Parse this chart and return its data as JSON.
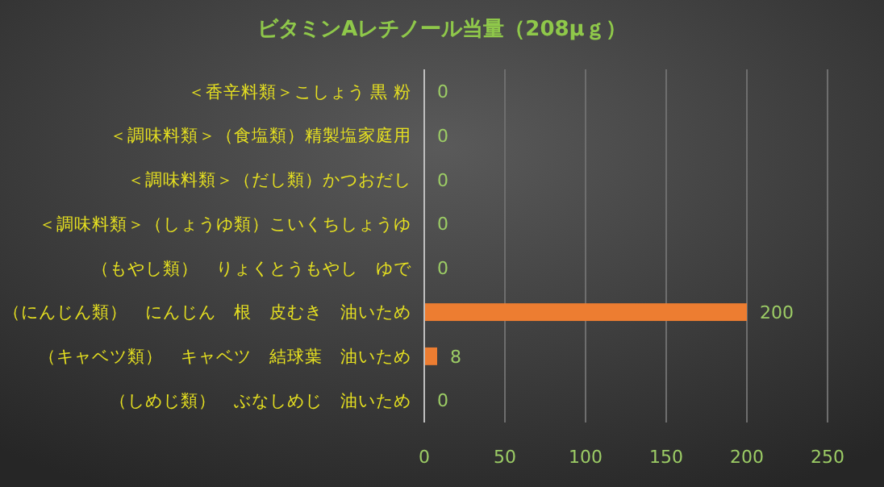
{
  "chart_data": {
    "type": "bar",
    "orientation": "horizontal",
    "title": "ビタミンAレチノール当量（208μｇ）",
    "categories": [
      "＜香辛料類＞こしょう 黒 粉",
      "＜調味料類＞（食塩類）精製塩家庭用",
      "＜調味料類＞（だし類）かつおだし",
      "＜調味料類＞（しょうゆ類）こいくちしょうゆ",
      "（もやし類）　りょくとうもやし　ゆで",
      "（にんじん類）　にんじん　根　皮むき　油いため",
      "（キャベツ類）　キャベツ　結球葉　油いため",
      "（しめじ類）　ぶなしめじ　油いため"
    ],
    "values": [
      0,
      0,
      0,
      0,
      0,
      200,
      8,
      0
    ],
    "color": "#ed7d31",
    "xlim": [
      0,
      250
    ],
    "xticks": [
      0,
      50,
      100,
      150,
      200,
      250
    ],
    "grid": "x",
    "data_labels": true
  }
}
